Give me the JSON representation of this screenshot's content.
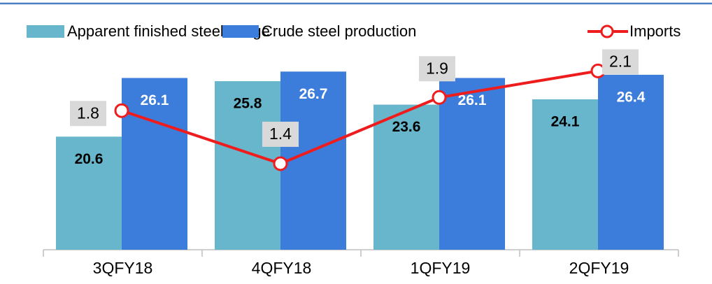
{
  "chart_data": {
    "type": "bar-line",
    "categories": [
      "3QFY18",
      "4QFY18",
      "1QFY19",
      "2QFY19"
    ],
    "series": [
      {
        "name": "Apparent finished steel usage",
        "type": "bar",
        "color": "#68b6cb",
        "values": [
          20.6,
          25.8,
          23.6,
          24.1
        ]
      },
      {
        "name": "Crude steel production",
        "type": "bar",
        "color": "#3c7ddb",
        "values": [
          26.1,
          26.7,
          26.1,
          26.4
        ]
      },
      {
        "name": "Imports",
        "type": "line",
        "axis": "y2",
        "color": "#ee1c1c",
        "values": [
          1.8,
          1.4,
          1.9,
          2.1
        ]
      }
    ],
    "ylim": [
      10,
      28
    ],
    "y2lim": [
      0.75,
      2.2
    ],
    "legend": "top"
  }
}
